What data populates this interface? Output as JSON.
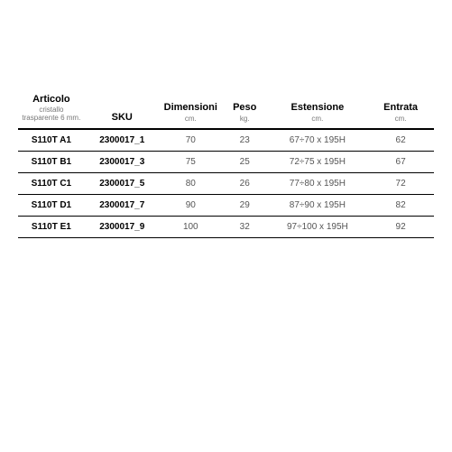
{
  "table": {
    "columns": [
      {
        "key": "articolo",
        "label": "Articolo",
        "sub": "cristallo trasparente\n6 mm."
      },
      {
        "key": "sku",
        "label": "SKU",
        "sub": ""
      },
      {
        "key": "dimensioni",
        "label": "Dimensioni",
        "sub": "cm."
      },
      {
        "key": "peso",
        "label": "Peso",
        "sub": "kg."
      },
      {
        "key": "estensione",
        "label": "Estensione",
        "sub": "cm."
      },
      {
        "key": "entrata",
        "label": "Entrata",
        "sub": "cm."
      }
    ],
    "rows": [
      {
        "articolo": "S110T A1",
        "sku": "2300017_1",
        "dimensioni": "70",
        "peso": "23",
        "estensione": "67÷70 x 195H",
        "entrata": "62"
      },
      {
        "articolo": "S110T B1",
        "sku": "2300017_3",
        "dimensioni": "75",
        "peso": "25",
        "estensione": "72÷75 x 195H",
        "entrata": "67"
      },
      {
        "articolo": "S110T C1",
        "sku": "2300017_5",
        "dimensioni": "80",
        "peso": "26",
        "estensione": "77÷80 x 195H",
        "entrata": "72"
      },
      {
        "articolo": "S110T D1",
        "sku": "2300017_7",
        "dimensioni": "90",
        "peso": "29",
        "estensione": "87÷90 x 195H",
        "entrata": "82"
      },
      {
        "articolo": "S110T E1",
        "sku": "2300017_9",
        "dimensioni": "100",
        "peso": "32",
        "estensione": "97÷100 x 195H",
        "entrata": "92"
      }
    ],
    "style": {
      "header_border_color": "#000000",
      "row_border_color": "#000000",
      "header_fontsize": 11,
      "sub_fontsize": 8,
      "cell_fontsize": 10,
      "bold_color": "#000000",
      "data_color": "#555555",
      "background": "#ffffff"
    }
  }
}
